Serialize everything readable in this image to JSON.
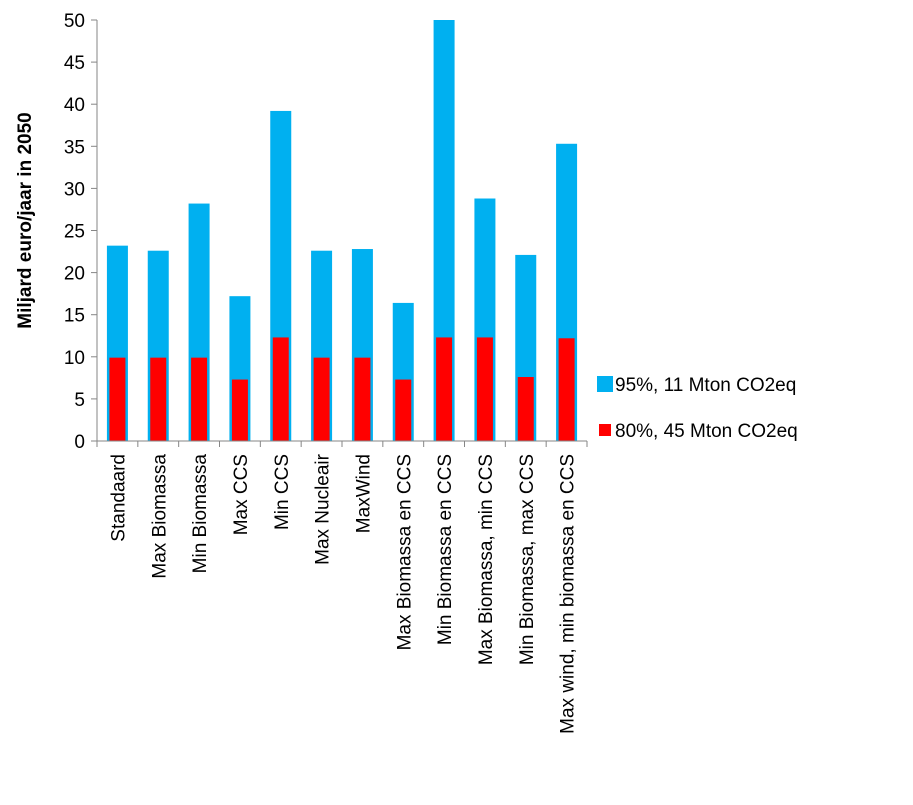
{
  "chart_data": {
    "type": "bar",
    "title": "",
    "xlabel": "",
    "ylabel": "Miljard euro/jaar in 2050",
    "ylim": [
      0,
      50
    ],
    "y_ticks": [
      0,
      5,
      10,
      15,
      20,
      25,
      30,
      35,
      40,
      45,
      50
    ],
    "grid": false,
    "legend_position": "right",
    "bar_style": "overlapping",
    "categories": [
      "Standaard",
      "Max Biomassa",
      "Min Biomassa",
      "Max CCS",
      "Min CCS",
      "Max Nucleair",
      "MaxWind",
      "Max Biomassa en CCS",
      "Min Biomassa en CCS",
      "Max Biomassa, min CCS",
      "Min Biomassa, max CCS",
      "Max wind, min biomassa en CCS"
    ],
    "series": [
      {
        "name": "95%, 11 Mton CO2eq",
        "color": "#00b0f0",
        "values": [
          23.2,
          22.6,
          28.2,
          17.2,
          39.2,
          22.6,
          22.8,
          16.4,
          50.0,
          28.8,
          22.1,
          35.3
        ]
      },
      {
        "name": "80%, 45 Mton CO2eq",
        "color": "#ff0000",
        "values": [
          9.9,
          9.9,
          9.9,
          7.3,
          12.3,
          9.9,
          9.9,
          7.3,
          12.3,
          12.3,
          7.6,
          12.2
        ]
      }
    ]
  }
}
